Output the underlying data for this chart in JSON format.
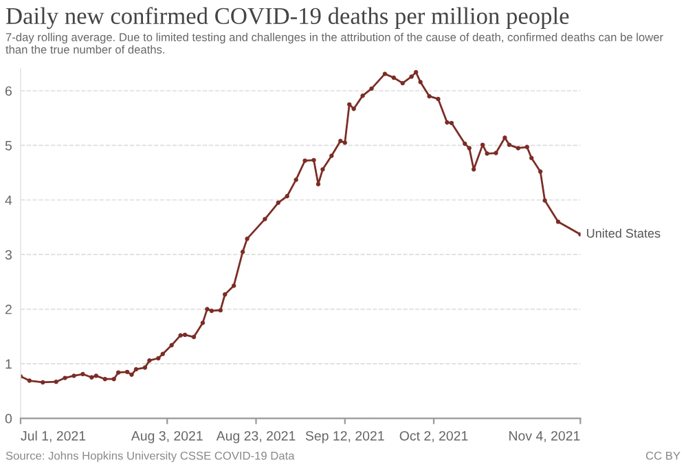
{
  "chart_data": {
    "type": "line",
    "title": "Daily new confirmed COVID-19 deaths per million people",
    "subtitle": "7-day rolling average. Due to limited testing and challenges in the attribution of the cause of death, confirmed deaths can be lower than the true number of deaths.",
    "annotations": [
      "Source: Johns Hopkins University CSSE COVID-19 Data",
      "CC BY"
    ],
    "x": [
      "2021-07-01",
      "2021-07-03",
      "2021-07-06",
      "2021-07-09",
      "2021-07-11",
      "2021-07-13",
      "2021-07-15",
      "2021-07-17",
      "2021-07-18",
      "2021-07-20",
      "2021-07-22",
      "2021-07-23",
      "2021-07-25",
      "2021-07-26",
      "2021-07-27",
      "2021-07-29",
      "2021-07-30",
      "2021-08-01",
      "2021-08-02",
      "2021-08-04",
      "2021-08-06",
      "2021-08-07",
      "2021-08-09",
      "2021-08-11",
      "2021-08-12",
      "2021-08-13",
      "2021-08-15",
      "2021-08-16",
      "2021-08-18",
      "2021-08-20",
      "2021-08-21",
      "2021-08-25",
      "2021-08-28",
      "2021-08-30",
      "2021-09-01",
      "2021-09-03",
      "2021-09-05",
      "2021-09-06",
      "2021-09-07",
      "2021-09-09",
      "2021-09-11",
      "2021-09-12",
      "2021-09-13",
      "2021-09-14",
      "2021-09-16",
      "2021-09-18",
      "2021-09-21",
      "2021-09-23",
      "2021-09-25",
      "2021-09-27",
      "2021-09-28",
      "2021-09-29",
      "2021-10-01",
      "2021-10-03",
      "2021-10-05",
      "2021-10-06",
      "2021-10-09",
      "2021-10-10",
      "2021-10-11",
      "2021-10-13",
      "2021-10-14",
      "2021-10-16",
      "2021-10-18",
      "2021-10-19",
      "2021-10-21",
      "2021-10-23",
      "2021-10-24",
      "2021-10-26",
      "2021-10-27",
      "2021-10-30",
      "2021-11-04"
    ],
    "series": [
      {
        "name": "United States",
        "color": "#7b2d26",
        "values": [
          0.77,
          0.69,
          0.66,
          0.67,
          0.74,
          0.78,
          0.81,
          0.75,
          0.78,
          0.72,
          0.72,
          0.84,
          0.85,
          0.8,
          0.9,
          0.93,
          1.06,
          1.1,
          1.18,
          1.34,
          1.52,
          1.53,
          1.49,
          1.75,
          2.0,
          1.97,
          1.98,
          2.27,
          2.43,
          3.05,
          3.29,
          3.65,
          3.95,
          4.07,
          4.37,
          4.72,
          4.73,
          4.29,
          4.56,
          4.81,
          5.08,
          5.05,
          5.75,
          5.67,
          5.91,
          6.04,
          6.31,
          6.24,
          6.14,
          6.26,
          6.34,
          6.16,
          5.9,
          5.85,
          5.42,
          5.41,
          5.03,
          4.95,
          4.56,
          5.01,
          4.85,
          4.86,
          5.14,
          5.01,
          4.95,
          4.97,
          4.77,
          4.52,
          3.99,
          3.6,
          3.37
        ]
      }
    ],
    "xlim": [
      "2021-07-01",
      "2021-11-04"
    ],
    "xticks": [
      {
        "value": "2021-07-01",
        "label": "Jul 1, 2021"
      },
      {
        "value": "2021-08-03",
        "label": "Aug 3, 2021"
      },
      {
        "value": "2021-08-23",
        "label": "Aug 23, 2021"
      },
      {
        "value": "2021-09-12",
        "label": "Sep 12, 2021"
      },
      {
        "value": "2021-10-02",
        "label": "Oct 2, 2021"
      },
      {
        "value": "2021-11-04",
        "label": "Nov 4, 2021"
      }
    ],
    "ylim": [
      0,
      6.4
    ],
    "yticks": [
      0,
      1,
      2,
      3,
      4,
      5,
      6
    ],
    "grid": "y",
    "marker": "circle",
    "line_style": "solid",
    "legend": false
  }
}
